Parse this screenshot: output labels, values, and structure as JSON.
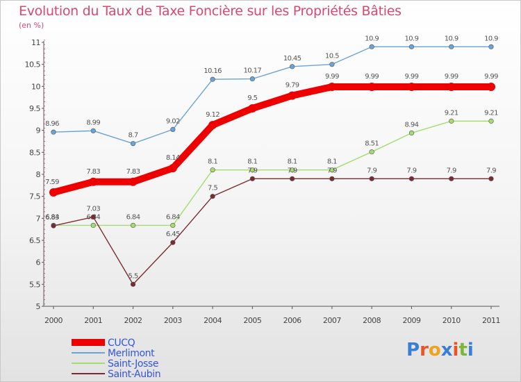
{
  "page": {
    "title": "Evolution du Taux de Taxe Foncière sur les Propriétés Bâties",
    "subtitle": "(en %)"
  },
  "logo": {
    "text": "Proxiti",
    "letter_colors": [
      "#3a7fd5",
      "#e8542a",
      "#f0a21d",
      "#3a7fd5",
      "#e8542a",
      "#7bb83a",
      "#3a7fd5"
    ]
  },
  "chart_data": {
    "type": "line",
    "title": "Evolution du Taux de Taxe Foncière sur les Propriétés Bâties",
    "ylabel": "(en %)",
    "x": [
      "2000",
      "2001",
      "2002",
      "2003",
      "2004",
      "2005",
      "2006",
      "2007",
      "2008",
      "2009",
      "2010",
      "2011"
    ],
    "ylim": [
      5,
      11
    ],
    "yticks": [
      "5",
      "5.5",
      "6",
      "6.5",
      "7",
      "7.5",
      "8",
      "8.5",
      "9",
      "9.5",
      "10",
      "10.5",
      "11"
    ],
    "grid": false,
    "legend_position": "bottom-left",
    "series": [
      {
        "name": "CUCQ",
        "color": "#ee0000",
        "values": [
          7.59,
          7.83,
          7.83,
          8.14,
          9.12,
          9.5,
          9.79,
          9.99,
          9.99,
          9.99,
          9.99,
          9.99
        ],
        "labels": [
          "7.59",
          "7.83",
          "7.83",
          "8.14",
          "9.12",
          "9.5",
          "9.79",
          "9.99",
          "9.99",
          "9.99",
          "9.99",
          "9.99"
        ]
      },
      {
        "name": "Merlimont",
        "color": "#6aa3d5",
        "values": [
          8.96,
          8.99,
          8.7,
          9.02,
          10.16,
          10.17,
          10.45,
          10.5,
          10.9,
          10.9,
          10.9,
          10.9
        ],
        "labels": [
          "8.96",
          "8.99",
          "8.7",
          "9.02",
          "10.16",
          "10.17",
          "10.45",
          "10.5",
          "10.9",
          "10.9",
          "10.9",
          "10.9"
        ]
      },
      {
        "name": "Saint-Josse",
        "color": "#a6dc6e",
        "values": [
          6.84,
          6.84,
          6.84,
          6.84,
          8.1,
          8.1,
          8.1,
          8.1,
          8.51,
          8.94,
          9.21,
          9.21
        ],
        "labels": [
          "6.84",
          "6.84",
          "6.84",
          "6.84",
          "8.1",
          "8.1",
          "8.1",
          "8.1",
          "8.51",
          "8.94",
          "9.21",
          "9.21"
        ]
      },
      {
        "name": "Saint-Aubin",
        "color": "#7a2a32",
        "values": [
          6.83,
          7.03,
          5.5,
          6.45,
          7.5,
          7.9,
          7.9,
          7.9,
          7.9,
          7.9,
          7.9,
          7.9
        ],
        "labels": [
          "6.83",
          "7.03",
          "5.5",
          "6.45",
          "7.5",
          "7.9",
          "7.9",
          "7.9",
          "7.9",
          "7.9",
          "7.9",
          "7.9"
        ]
      }
    ]
  }
}
